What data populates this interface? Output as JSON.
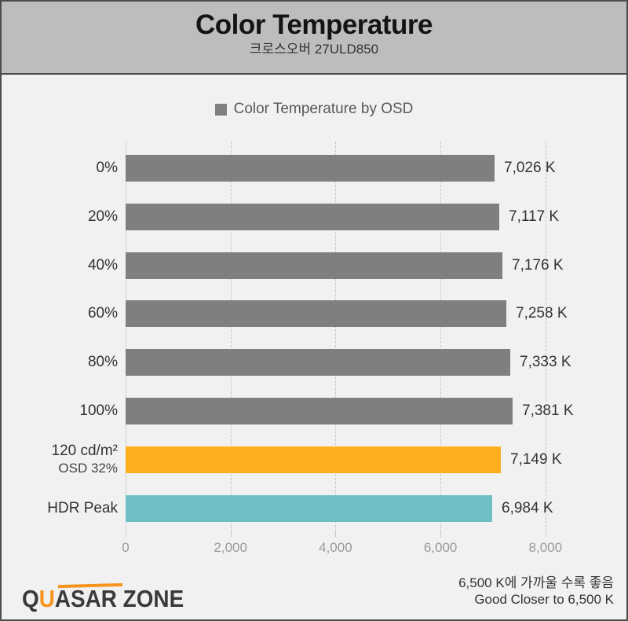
{
  "header": {
    "title": "Color Temperature",
    "subtitle": "크로스오버 27ULD850"
  },
  "legend": {
    "label": "Color Temperature by OSD",
    "swatch_color": "#808080"
  },
  "chart_data": {
    "type": "bar",
    "orientation": "horizontal",
    "title": "Color Temperature",
    "subtitle": "크로스오버 27ULD850",
    "legend": [
      "Color Temperature by OSD"
    ],
    "legend_position": "top-center",
    "grid": "vertical-dashed",
    "xlim": [
      0,
      8000
    ],
    "x_ticks": [
      {
        "value": 0,
        "label": "0"
      },
      {
        "value": 2000,
        "label": "2,000"
      },
      {
        "value": 4000,
        "label": "4,000"
      },
      {
        "value": 6000,
        "label": "6,000"
      },
      {
        "value": 8000,
        "label": "8,000"
      }
    ],
    "rows": [
      {
        "label": "0%",
        "sublabel": "",
        "value": 7026,
        "display": "7,026 K",
        "color": "#7f7f7f"
      },
      {
        "label": "20%",
        "sublabel": "",
        "value": 7117,
        "display": "7,117 K",
        "color": "#7f7f7f"
      },
      {
        "label": "40%",
        "sublabel": "",
        "value": 7176,
        "display": "7,176 K",
        "color": "#7f7f7f"
      },
      {
        "label": "60%",
        "sublabel": "",
        "value": 7258,
        "display": "7,258 K",
        "color": "#7f7f7f"
      },
      {
        "label": "80%",
        "sublabel": "",
        "value": 7333,
        "display": "7,333 K",
        "color": "#7f7f7f"
      },
      {
        "label": "100%",
        "sublabel": "",
        "value": 7381,
        "display": "7,381 K",
        "color": "#7f7f7f"
      },
      {
        "label": "120 cd/m²",
        "sublabel": "OSD 32%",
        "value": 7149,
        "display": "7,149 K",
        "color": "#fcae1c"
      },
      {
        "label": "HDR Peak",
        "sublabel": "",
        "value": 6984,
        "display": "6,984 K",
        "color": "#70bec5"
      }
    ],
    "colors": {
      "bar_default": "#7f7f7f",
      "bar_highlight_orange": "#fcae1c",
      "bar_highlight_teal": "#70bec5",
      "header_background": "#bdbdbd",
      "chart_background": "#f1f1f1",
      "frame_border": "#4d4d4d"
    }
  },
  "footer": {
    "logo": {
      "q": "Q",
      "u": "U",
      "rest": "ASAR ZONE"
    },
    "note_line1": "6,500 K에 가까울 수록 좋음",
    "note_line2": "Good Closer to 6,500 K"
  }
}
